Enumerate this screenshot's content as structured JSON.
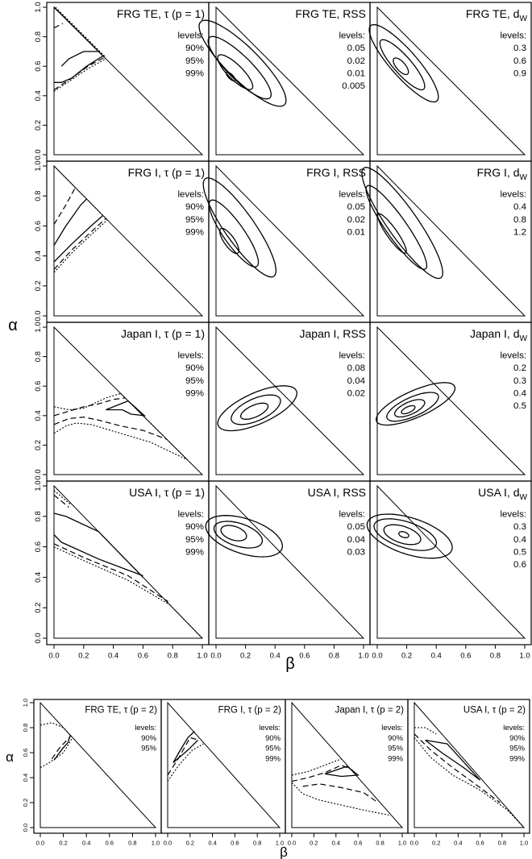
{
  "chart_data": [
    {
      "type": "contour",
      "group": "main",
      "xlabel": "β",
      "ylabel": "α",
      "xlim": [
        0,
        1
      ],
      "ylim": [
        0,
        1
      ],
      "xticks": [
        "0.0",
        "0.2",
        "0.4",
        "0.6",
        "0.8",
        "1.0"
      ],
      "yticks": [
        "0.0",
        "0.2",
        "0.4",
        "0.6",
        "0.8",
        "1.0"
      ],
      "panels": [
        {
          "title": "FRG TE, τ (p = 1)",
          "legend_title": "levels:",
          "levels": [
            "90%",
            "95%",
            "99%"
          ]
        },
        {
          "title": "FRG TE, RSS",
          "legend_title": "levels:",
          "levels": [
            "0.05",
            "0.02",
            "0.01",
            "0.005"
          ]
        },
        {
          "title": "FRG TE, dW",
          "legend_title": "levels:",
          "levels": [
            "0.3",
            "0.6",
            "0.9"
          ]
        },
        {
          "title": "FRG I, τ (p = 1)",
          "legend_title": "levels:",
          "levels": [
            "90%",
            "95%",
            "99%"
          ]
        },
        {
          "title": "FRG I, RSS",
          "legend_title": "levels:",
          "levels": [
            "0.05",
            "0.02",
            "0.01"
          ]
        },
        {
          "title": "FRG I, dW",
          "legend_title": "levels:",
          "levels": [
            "0.4",
            "0.8",
            "1.2"
          ]
        },
        {
          "title": "Japan I, τ (p = 1)",
          "legend_title": "levels:",
          "levels": [
            "90%",
            "95%",
            "99%"
          ]
        },
        {
          "title": "Japan I, RSS",
          "legend_title": "levels:",
          "levels": [
            "0.08",
            "0.04",
            "0.02"
          ]
        },
        {
          "title": "Japan I, dW",
          "legend_title": "levels:",
          "levels": [
            "0.2",
            "0.3",
            "0.4",
            "0.5"
          ]
        },
        {
          "title": "USA I, τ (p = 1)",
          "legend_title": "levels:",
          "levels": [
            "90%",
            "95%",
            "99%"
          ]
        },
        {
          "title": "USA I, RSS",
          "legend_title": "levels:",
          "levels": [
            "0.05",
            "0.04",
            "0.03"
          ]
        },
        {
          "title": "USA I, dW",
          "legend_title": "levels:",
          "levels": [
            "0.3",
            "0.4",
            "0.5",
            "0.6"
          ]
        }
      ]
    },
    {
      "type": "contour",
      "group": "bottom",
      "xlabel": "β",
      "ylabel": "α",
      "xlim": [
        0,
        1
      ],
      "ylim": [
        0,
        1
      ],
      "xticks": [
        "0.0",
        "0.2",
        "0.4",
        "0.6",
        "0.8",
        "1.0"
      ],
      "yticks": [
        "0.0",
        "0.2",
        "0.4",
        "0.6",
        "0.8",
        "1.0"
      ],
      "panels": [
        {
          "title": "FRG TE, τ (p = 2)",
          "legend_title": "levels:",
          "levels": [
            "90%",
            "95%"
          ]
        },
        {
          "title": "FRG I, τ (p = 2)",
          "legend_title": "levels:",
          "levels": [
            "90%",
            "95%",
            "99%"
          ]
        },
        {
          "title": "Japan I, τ (p = 2)",
          "legend_title": "levels:",
          "levels": [
            "90%",
            "95%",
            "99%"
          ]
        },
        {
          "title": "USA I, τ (p = 2)",
          "legend_title": "levels:",
          "levels": [
            "90%",
            "95%",
            "99%"
          ]
        }
      ]
    }
  ]
}
